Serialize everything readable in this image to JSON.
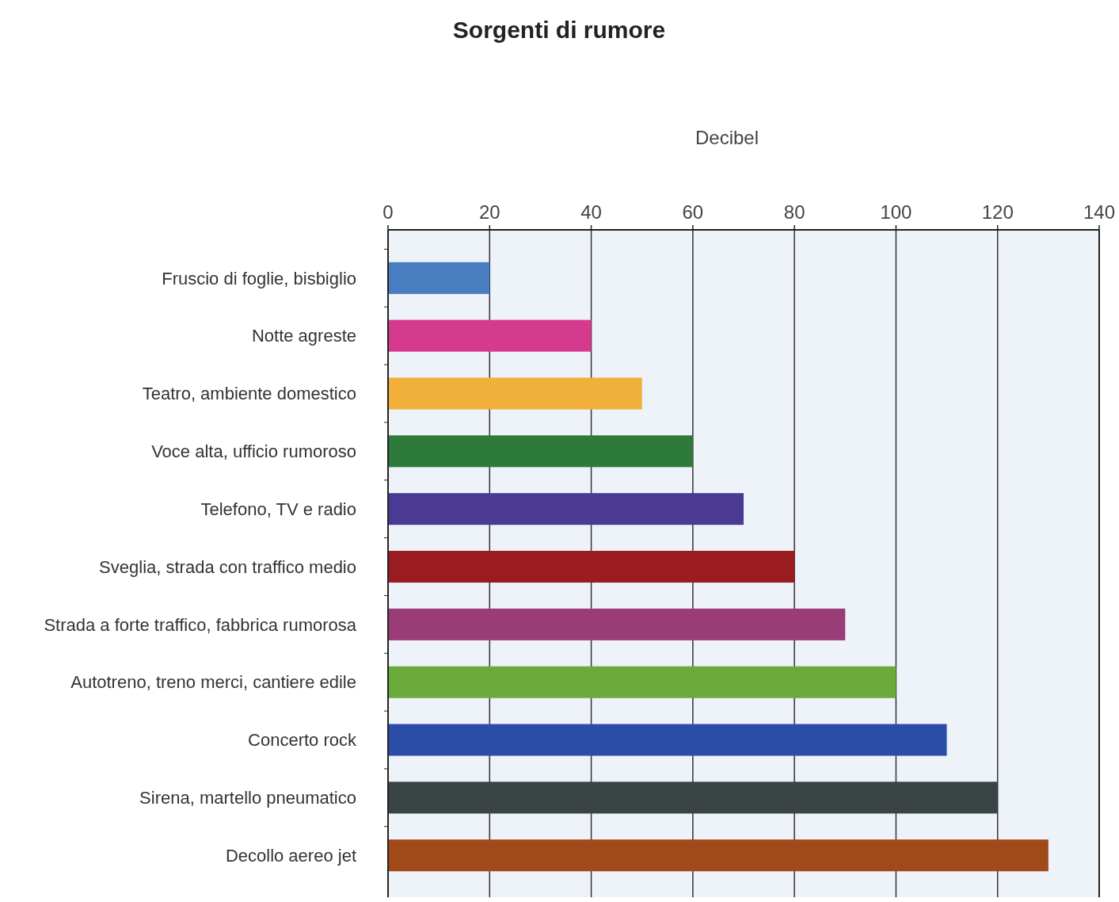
{
  "chart_data": {
    "type": "bar",
    "orientation": "horizontal",
    "title": "Sorgenti di rumore",
    "xlabel": "Decibel",
    "categories": [
      "Fruscio di foglie, bisbiglio",
      "Notte agreste",
      "Teatro, ambiente domestico",
      "Voce alta, ufficio rumoroso",
      "Telefono, TV e radio",
      "Sveglia, strada con traffico medio",
      "Strada a forte traffico, fabbrica rumorosa",
      "Autotreno, treno merci, cantiere edile",
      "Concerto rock",
      "Sirena, martello pneumatico",
      "Decollo aereo jet"
    ],
    "values": [
      20,
      40,
      50,
      60,
      70,
      80,
      90,
      100,
      110,
      120,
      130
    ],
    "colors": [
      "#4a7cc0",
      "#d63a8e",
      "#f0b03a",
      "#2e7a3a",
      "#4a3a94",
      "#9a1c20",
      "#9a3c78",
      "#6aaa3a",
      "#2a4ea8",
      "#3a4444",
      "#a04a1a"
    ],
    "xlim": [
      0,
      140
    ],
    "xticks": [
      0,
      20,
      40,
      60,
      80,
      100,
      120,
      140
    ],
    "grid": "x"
  }
}
